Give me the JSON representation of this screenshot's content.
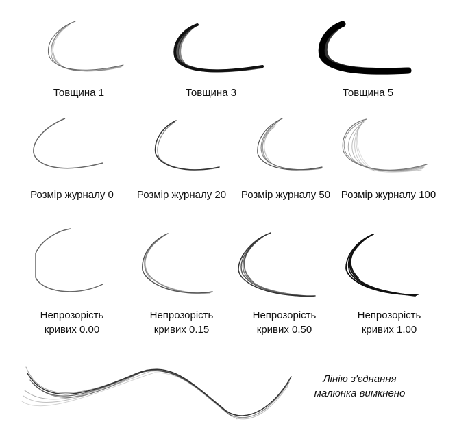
{
  "thickness_row": [
    {
      "label": "Товщина 1",
      "stroke": "#555555"
    },
    {
      "label": "Товщина 3",
      "stroke": "#111111"
    },
    {
      "label": "Товщина 5",
      "stroke": "#000000"
    }
  ],
  "history_row": [
    {
      "label": "Розмір журналу 0",
      "stroke": "#666666"
    },
    {
      "label": "Розмір журналу 20",
      "stroke": "#333333"
    },
    {
      "label": "Розмір журналу 50",
      "stroke": "#555555"
    },
    {
      "label": "Розмір журналу 100",
      "stroke": "#777777"
    }
  ],
  "opacity_row": [
    {
      "label_line1": "Непрозорість",
      "label_line2": "кривих 0.00",
      "stroke": "#666666"
    },
    {
      "label_line1": "Непрозорість",
      "label_line2": "кривих 0.15",
      "stroke": "#555555"
    },
    {
      "label_line1": "Непрозорість",
      "label_line2": "кривих 0.50",
      "stroke": "#333333"
    },
    {
      "label_line1": "Непрозорість",
      "label_line2": "кривих 1.00",
      "stroke": "#111111"
    }
  ],
  "connection": {
    "note_line1": "Лінію з'єднання",
    "note_line2": "малюнка вимкнено",
    "stroke": "#333333"
  }
}
